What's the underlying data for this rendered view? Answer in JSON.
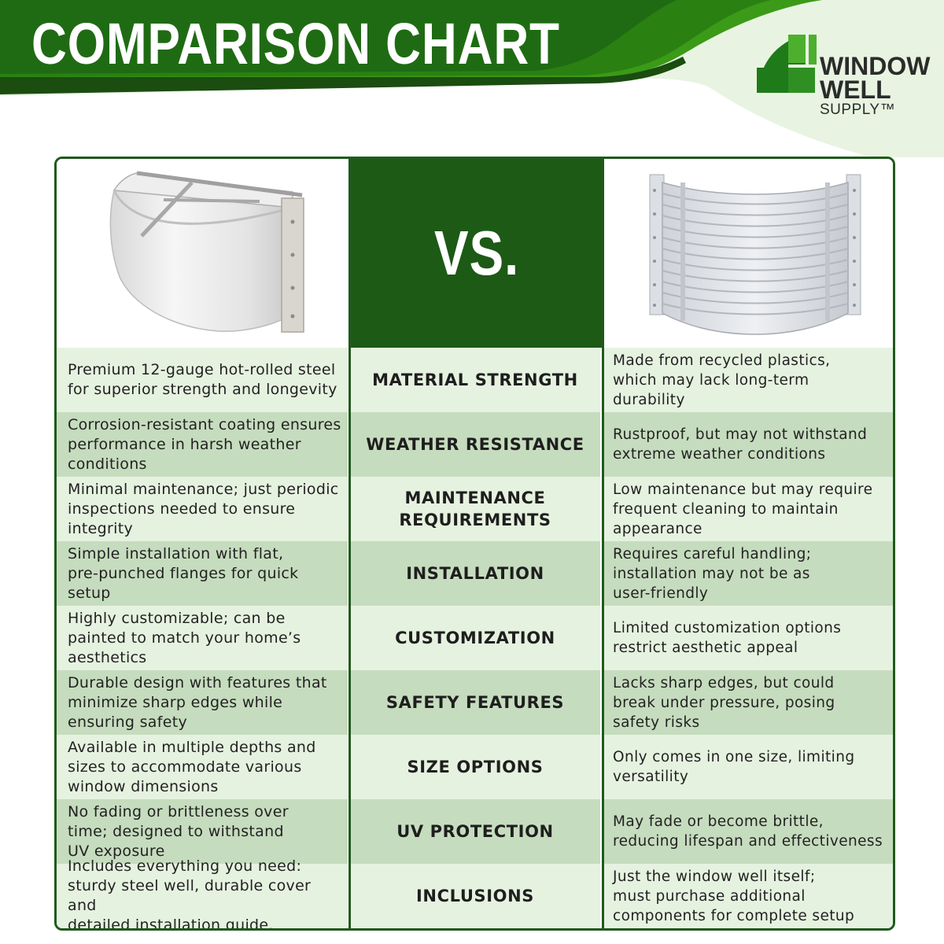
{
  "header": {
    "title": "COMPARISON CHART",
    "colors": {
      "dark_green": "#1f6b13",
      "bright_green": "#3b9a17",
      "pale_green": "#dff0d6"
    }
  },
  "logo": {
    "line1": "WINDOW",
    "line2": "WELL",
    "line3": "SUPPLY™",
    "colors": {
      "mark_dark": "#1f7a1a",
      "mark_light": "#4caf2e"
    }
  },
  "table": {
    "vs_label": "VS.",
    "left_image": "steel-window-well-photo",
    "right_image": "plastic-window-well-photo",
    "colors": {
      "border": "#1f5a1c",
      "row_light": "#e6f2e0",
      "row_dark": "#c6dcbe",
      "vs_bg": "#1c5a16"
    },
    "rows": [
      {
        "left": "Premium 12-gauge hot-rolled steel\nfor superior strength and longevity",
        "category": "MATERIAL STRENGTH",
        "right": "Made from recycled plastics,\nwhich may lack long-term\ndurability"
      },
      {
        "left": "Corrosion-resistant coating ensures\nperformance in harsh weather\nconditions",
        "category": "WEATHER RESISTANCE",
        "right": "Rustproof, but may not withstand\nextreme weather conditions"
      },
      {
        "left": "Minimal maintenance; just periodic\ninspections needed to ensure\nintegrity",
        "category": "MAINTENANCE\nREQUIREMENTS",
        "right": "Low maintenance but may require\nfrequent cleaning to maintain\nappearance"
      },
      {
        "left": "Simple installation with flat,\npre-punched flanges for quick\nsetup",
        "category": "INSTALLATION",
        "right": "Requires careful handling;\ninstallation may not be as\nuser-friendly"
      },
      {
        "left": "Highly customizable; can be\npainted to match your home’s\naesthetics",
        "category": "CUSTOMIZATION",
        "right": "Limited customization options\nrestrict aesthetic appeal"
      },
      {
        "left": "Durable design with features that\nminimize sharp edges while\nensuring safety",
        "category": "SAFETY FEATURES",
        "right": "Lacks sharp edges, but could\nbreak under pressure, posing\nsafety risks"
      },
      {
        "left": "Available in multiple depths and\nsizes to accommodate various\nwindow dimensions",
        "category": "SIZE OPTIONS",
        "right": "Only comes in one size, limiting\nversatility"
      },
      {
        "left": "No fading or brittleness over\ntime; designed to withstand\nUV exposure",
        "category": "UV PROTECTION",
        "right": "May fade or become brittle,\nreducing lifespan and effectiveness"
      },
      {
        "left": "Includes everything you need:\nsturdy steel well, durable cover and\ndetailed installation guide.",
        "category": "INCLUSIONS",
        "right": "Just the window well itself;\nmust purchase additional\ncomponents for complete setup"
      }
    ]
  }
}
